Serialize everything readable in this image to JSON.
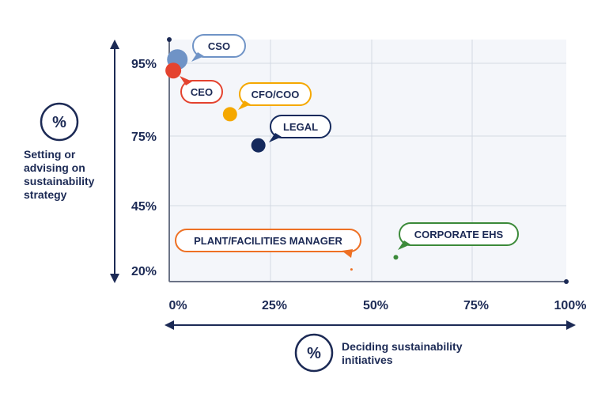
{
  "chart_data": {
    "type": "scatter",
    "xlabel": "Deciding sustainability initiatives",
    "ylabel": "Setting or advising on sustainability strategy",
    "axis_icon": "%",
    "x_ticks": [
      "0%",
      "25%",
      "50%",
      "75%",
      "100%"
    ],
    "x_tick_values": [
      0,
      25,
      50,
      75,
      100
    ],
    "y_ticks": [
      "95%",
      "75%",
      "45%",
      "20%"
    ],
    "y_tick_values": [
      95,
      75,
      45,
      20
    ],
    "xlim": [
      0,
      100
    ],
    "ylim": [
      20,
      100
    ],
    "grid": true,
    "points": [
      {
        "label": "CSO",
        "x": 2,
        "y": 96,
        "size": 13,
        "color": "#6f93c6"
      },
      {
        "label": "CEO",
        "x": 1,
        "y": 93,
        "size": 10,
        "color": "#e4432f"
      },
      {
        "label": "CFO/COO",
        "x": 15,
        "y": 81,
        "size": 9,
        "color": "#f5a800"
      },
      {
        "label": "LEGAL",
        "x": 22,
        "y": 71,
        "size": 9,
        "color": "#14295c"
      },
      {
        "label": "PLANT/FACILITIES MANAGER",
        "x": 45,
        "y": 24,
        "size": 1.5,
        "color": "#ee7023"
      },
      {
        "label": "CORPORATE EHS",
        "x": 56,
        "y": 28,
        "size": 3,
        "color": "#3c8a3a"
      }
    ]
  }
}
